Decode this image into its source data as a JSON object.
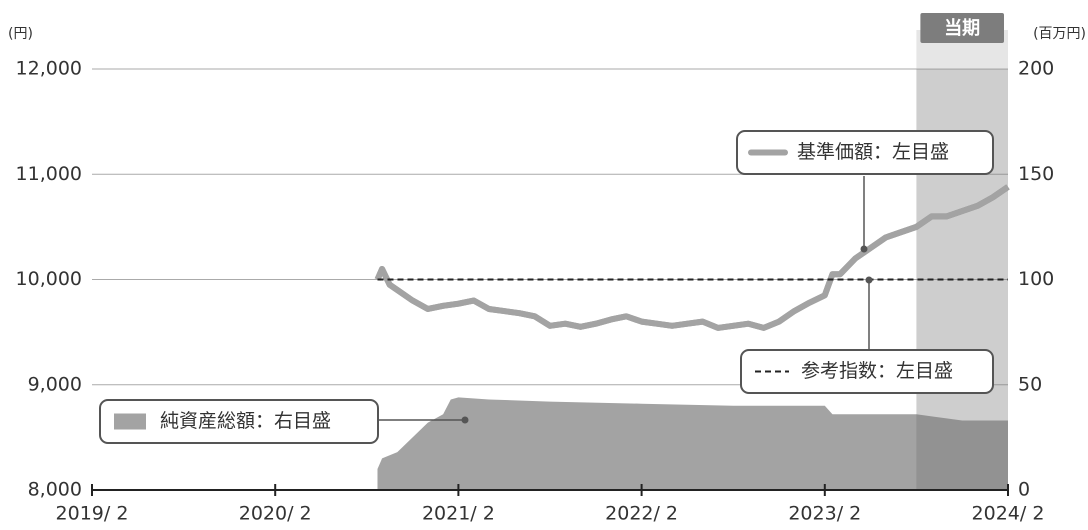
{
  "chart_data": {
    "type": "line",
    "y_unit": "(円)",
    "y2_unit": "(百万円)",
    "xlim": [
      0,
      60
    ],
    "xticks": [
      {
        "value": 0,
        "label": "2019/ 2"
      },
      {
        "value": 12,
        "label": "2020/ 2"
      },
      {
        "value": 24,
        "label": "2021/ 2"
      },
      {
        "value": 36,
        "label": "2022/ 2"
      },
      {
        "value": 48,
        "label": "2023/ 2"
      },
      {
        "value": 60,
        "label": "2024/ 2"
      }
    ],
    "ylim": [
      8000,
      12000
    ],
    "yticks": [
      {
        "value": 8000,
        "label": "8,000"
      },
      {
        "value": 9000,
        "label": "9,000"
      },
      {
        "value": 10000,
        "label": "10,000"
      },
      {
        "value": 11000,
        "label": "11,000"
      },
      {
        "value": 12000,
        "label": "12,000"
      }
    ],
    "y2lim": [
      0,
      200
    ],
    "y2ticks": [
      0,
      50,
      100,
      150,
      200
    ],
    "grid": true,
    "shade": {
      "label": "当期",
      "from": 54,
      "to": 60
    },
    "series": [
      {
        "name": "純資産総額：右目盛",
        "kind": "area",
        "axis": "y2",
        "color": "#a3a3a3",
        "x": [
          18.7,
          19,
          20,
          21,
          22,
          23,
          23.5,
          24,
          26,
          30,
          36,
          42,
          48,
          48.5,
          54,
          55,
          57,
          60
        ],
        "values": [
          10,
          15,
          18,
          25,
          32,
          36,
          43,
          44,
          43,
          42,
          41,
          40,
          40,
          36,
          36,
          35,
          33,
          33
        ]
      },
      {
        "name": "基準価額：左目盛",
        "kind": "line",
        "color": "#a3a3a3",
        "x": [
          18.7,
          19,
          19.5,
          20,
          21,
          22,
          23,
          24,
          25,
          26,
          27,
          28,
          29,
          30,
          31,
          32,
          33,
          34,
          35,
          36,
          37,
          38,
          39,
          40,
          41,
          42,
          43,
          44,
          45,
          46,
          47,
          48,
          48.5,
          49,
          50,
          51,
          52,
          53,
          54,
          55,
          56,
          57,
          58,
          59,
          60
        ],
        "values": [
          10000,
          10100,
          9950,
          9900,
          9800,
          9720,
          9750,
          9770,
          9800,
          9720,
          9700,
          9680,
          9650,
          9560,
          9580,
          9550,
          9580,
          9620,
          9650,
          9600,
          9580,
          9560,
          9580,
          9600,
          9540,
          9560,
          9580,
          9540,
          9600,
          9700,
          9780,
          9850,
          10050,
          10050,
          10200,
          10300,
          10400,
          10450,
          10500,
          10600,
          10600,
          10650,
          10700,
          10780,
          10880
        ]
      },
      {
        "name": "参考指数：左目盛",
        "kind": "dashed",
        "color": "#222222",
        "x": [
          18.7,
          60
        ],
        "values": [
          10000,
          10000
        ]
      }
    ]
  }
}
